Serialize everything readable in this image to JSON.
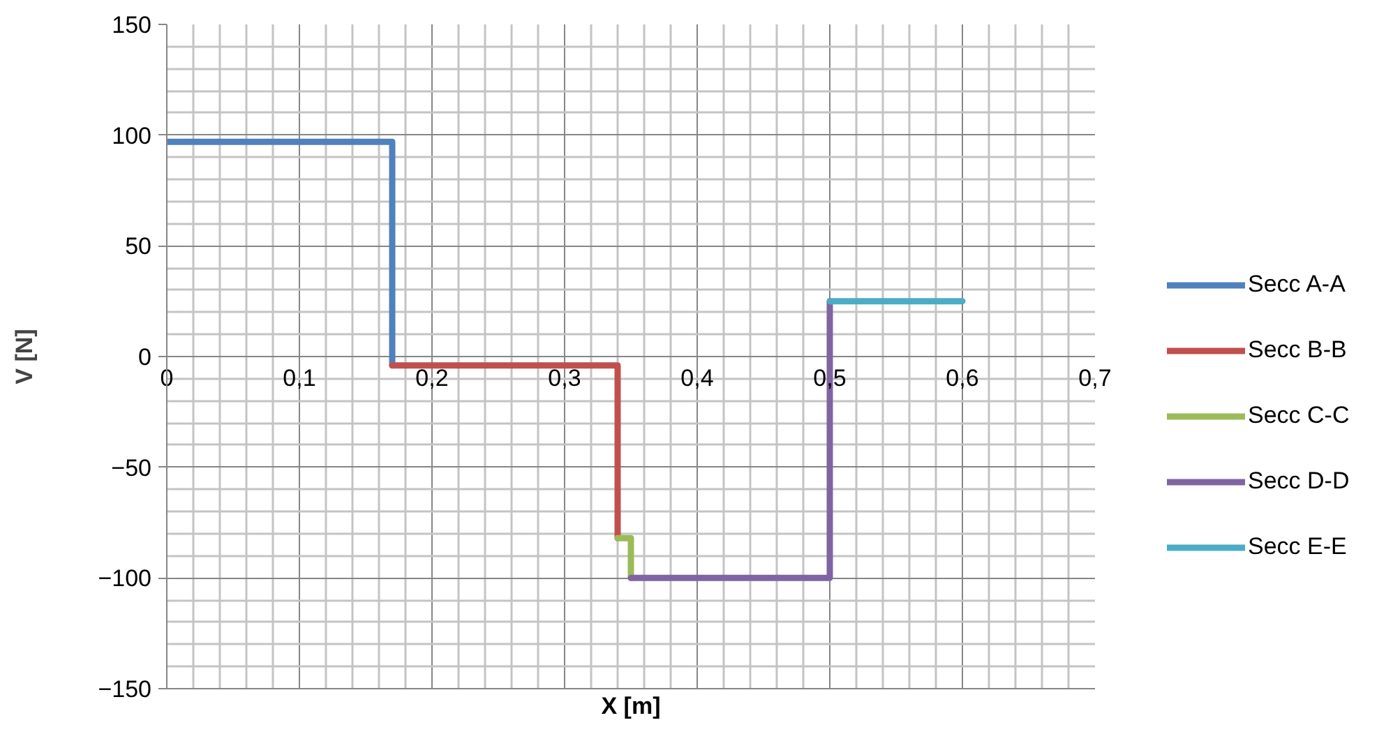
{
  "chart_data": {
    "type": "line",
    "xlabel": "X [m]",
    "ylabel": "V [N]",
    "xlim": [
      0,
      0.7
    ],
    "xticks": [
      0,
      {
        "value": 0.1,
        "label": "0,1"
      },
      {
        "value": 0.2,
        "label": "0,2"
      },
      {
        "value": 0.3,
        "label": "0,3"
      },
      {
        "value": 0.4,
        "label": "0,4"
      },
      {
        "value": 0.5,
        "label": "0,5"
      },
      {
        "value": 0.6,
        "label": "0,6"
      },
      {
        "value": 0.7,
        "label": "0,7"
      }
    ],
    "ylim": [
      -150,
      150
    ],
    "yticks": [
      -150,
      -100,
      -50,
      0,
      50,
      100,
      150
    ],
    "grid": true,
    "legend": "right",
    "marker": "none",
    "line_style": "solid",
    "series": [
      {
        "name": "Secc A-A",
        "color": "#4f81bd",
        "x": [
          0,
          0.17,
          0.17
        ],
        "values": [
          97,
          97,
          -4
        ]
      },
      {
        "name": "Secc B-B",
        "color": "#c0504d",
        "x": [
          0.17,
          0.34,
          0.34
        ],
        "values": [
          -4,
          -4,
          -82
        ]
      },
      {
        "name": "Secc C-C",
        "color": "#9bbb59",
        "x": [
          0.34,
          0.35,
          0.35
        ],
        "values": [
          -82,
          -82,
          -100
        ]
      },
      {
        "name": "Secc D-D",
        "color": "#8064a2",
        "x": [
          0.35,
          0.5,
          0.5
        ],
        "values": [
          -100,
          -100,
          25
        ]
      },
      {
        "name": "Secc E-E",
        "color": "#4bacc6",
        "x": [
          0.5,
          0.6
        ],
        "values": [
          25,
          25
        ]
      }
    ]
  }
}
